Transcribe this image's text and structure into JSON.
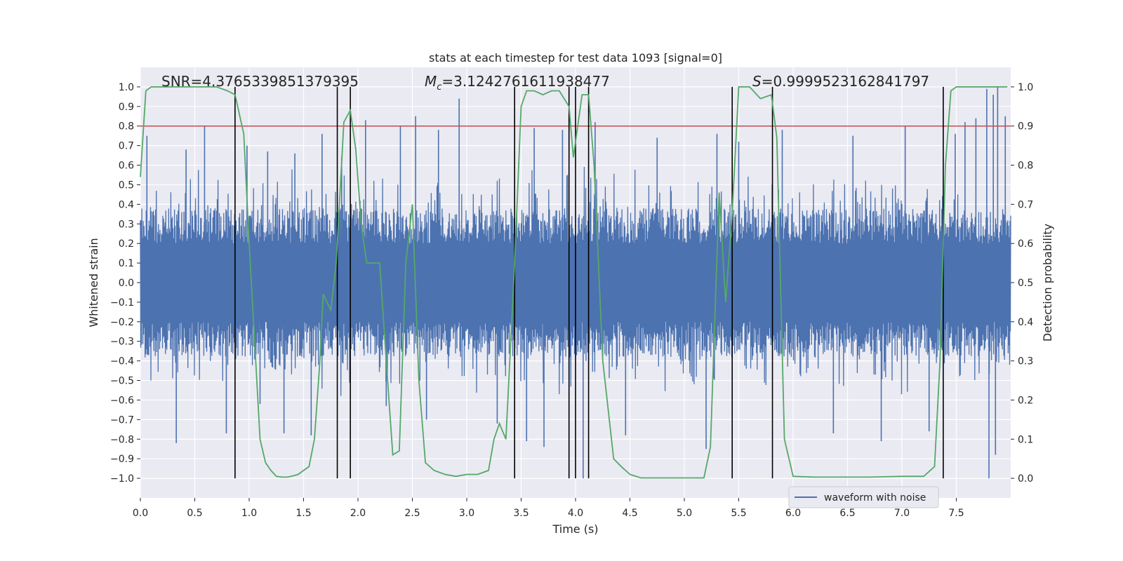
{
  "chart_data": {
    "type": "line",
    "title": "stats at each timestep for test data 1093 [signal=0]",
    "xlabel": "Time (s)",
    "ylabel": "Whitened strain",
    "y2label": "Detection probability",
    "xlim": [
      0.0,
      8.0
    ],
    "ylim": [
      -1.1,
      1.1
    ],
    "y2lim": [
      -0.05,
      1.05
    ],
    "x_ticks": [
      "0.0",
      "0.5",
      "1.0",
      "1.5",
      "2.0",
      "2.5",
      "3.0",
      "3.5",
      "4.0",
      "4.5",
      "5.0",
      "5.5",
      "6.0",
      "6.5",
      "7.0",
      "7.5"
    ],
    "x_tick_values": [
      0.0,
      0.5,
      1.0,
      1.5,
      2.0,
      2.5,
      3.0,
      3.5,
      4.0,
      4.5,
      5.0,
      5.5,
      6.0,
      6.5,
      7.0,
      7.5
    ],
    "y_ticks": [
      "1.0",
      "0.9",
      "0.8",
      "0.7",
      "0.6",
      "0.5",
      "0.4",
      "0.3",
      "0.2",
      "0.1",
      "0.0",
      "−0.1",
      "−0.2",
      "−0.3",
      "−0.4",
      "−0.5",
      "−0.6",
      "−0.7",
      "−0.8",
      "−0.9",
      "−1.0"
    ],
    "y_tick_values": [
      1.0,
      0.9,
      0.8,
      0.7,
      0.6,
      0.5,
      0.4,
      0.3,
      0.2,
      0.1,
      0.0,
      -0.1,
      -0.2,
      -0.3,
      -0.4,
      -0.5,
      -0.6,
      -0.7,
      -0.8,
      -0.9,
      -1.0
    ],
    "y2_ticks": [
      "1.0",
      "0.9",
      "0.8",
      "0.7",
      "0.6",
      "0.5",
      "0.4",
      "0.3",
      "0.2",
      "0.1",
      "0.0"
    ],
    "y2_tick_values": [
      1.0,
      0.9,
      0.8,
      0.7,
      0.6,
      0.5,
      0.4,
      0.3,
      0.2,
      0.1,
      0.0
    ],
    "grid": true,
    "legend_position": "lower-right",
    "stats": {
      "snr": "SNR=4.3765339851379395",
      "mc_prefix": "M",
      "mc_sub": "c",
      "mc_value": "=3.1242761611938477",
      "s_prefix": "S",
      "s_value": "=0.9999523162841797"
    },
    "threshold": {
      "y2": 0.9,
      "color": "#c44e52"
    },
    "vertical_lines": [
      0.87,
      1.81,
      1.93,
      3.44,
      3.94,
      4.0,
      4.12,
      5.44,
      5.81,
      7.38
    ],
    "series": [
      {
        "name": "waveform with noise",
        "axis": "left",
        "color": "#4c72b0",
        "description": "whitened strain, dense noise envelope ~±0.45 with spikes to ±1.0",
        "spikes": [
          [
            0.06,
            0.75
          ],
          [
            0.33,
            -0.82
          ],
          [
            0.42,
            0.68
          ],
          [
            0.59,
            0.8
          ],
          [
            0.79,
            -0.77
          ],
          [
            0.98,
            0.7
          ],
          [
            1.1,
            -0.62
          ],
          [
            1.17,
            0.67
          ],
          [
            1.32,
            -0.77
          ],
          [
            1.42,
            0.66
          ],
          [
            1.57,
            -0.78
          ],
          [
            1.67,
            0.76
          ],
          [
            1.85,
            0.64
          ],
          [
            2.07,
            0.83
          ],
          [
            2.26,
            -0.63
          ],
          [
            2.39,
            0.8
          ],
          [
            2.53,
            0.85
          ],
          [
            2.63,
            -0.7
          ],
          [
            2.74,
            0.78
          ],
          [
            2.93,
            0.94
          ],
          [
            3.28,
            -0.72
          ],
          [
            3.55,
            -0.81
          ],
          [
            3.62,
            0.79
          ],
          [
            3.71,
            -0.84
          ],
          [
            3.88,
            0.78
          ],
          [
            4.07,
            -1.0
          ],
          [
            4.18,
            0.82
          ],
          [
            4.46,
            -0.78
          ],
          [
            4.75,
            0.74
          ],
          [
            5.2,
            -0.85
          ],
          [
            5.3,
            0.76
          ],
          [
            5.5,
            0.72
          ],
          [
            5.9,
            0.78
          ],
          [
            6.37,
            -0.77
          ],
          [
            6.55,
            0.75
          ],
          [
            6.81,
            -0.81
          ],
          [
            7.03,
            0.8
          ],
          [
            7.25,
            -0.76
          ],
          [
            7.49,
            0.76
          ],
          [
            7.58,
            0.82
          ],
          [
            7.68,
            0.84
          ],
          [
            7.78,
            0.99
          ],
          [
            7.8,
            -1.0
          ],
          [
            7.84,
            0.96
          ],
          [
            7.86,
            -0.88
          ],
          [
            7.88,
            1.0
          ],
          [
            7.95,
            0.85
          ]
        ]
      },
      {
        "name": "",
        "axis": "right",
        "color": "#55a868",
        "points": [
          [
            0.0,
            0.77
          ],
          [
            0.05,
            0.99
          ],
          [
            0.1,
            1.0
          ],
          [
            0.2,
            1.0
          ],
          [
            0.3,
            1.0
          ],
          [
            0.4,
            1.0
          ],
          [
            0.5,
            1.0
          ],
          [
            0.6,
            1.0
          ],
          [
            0.7,
            1.0
          ],
          [
            0.8,
            0.99
          ],
          [
            0.87,
            0.98
          ],
          [
            0.95,
            0.88
          ],
          [
            1.0,
            0.6
          ],
          [
            1.05,
            0.35
          ],
          [
            1.1,
            0.1
          ],
          [
            1.15,
            0.04
          ],
          [
            1.2,
            0.02
          ],
          [
            1.25,
            0.005
          ],
          [
            1.3,
            0.003
          ],
          [
            1.35,
            0.003
          ],
          [
            1.4,
            0.006
          ],
          [
            1.45,
            0.01
          ],
          [
            1.5,
            0.02
          ],
          [
            1.55,
            0.03
          ],
          [
            1.6,
            0.1
          ],
          [
            1.65,
            0.3
          ],
          [
            1.68,
            0.47
          ],
          [
            1.75,
            0.43
          ],
          [
            1.8,
            0.55
          ],
          [
            1.87,
            0.91
          ],
          [
            1.93,
            0.94
          ],
          [
            1.98,
            0.84
          ],
          [
            2.03,
            0.65
          ],
          [
            2.08,
            0.55
          ],
          [
            2.13,
            0.55
          ],
          [
            2.2,
            0.55
          ],
          [
            2.26,
            0.3
          ],
          [
            2.32,
            0.06
          ],
          [
            2.38,
            0.07
          ],
          [
            2.44,
            0.55
          ],
          [
            2.5,
            0.7
          ],
          [
            2.56,
            0.25
          ],
          [
            2.62,
            0.04
          ],
          [
            2.7,
            0.02
          ],
          [
            2.8,
            0.01
          ],
          [
            2.9,
            0.005
          ],
          [
            3.0,
            0.01
          ],
          [
            3.1,
            0.01
          ],
          [
            3.2,
            0.02
          ],
          [
            3.25,
            0.1
          ],
          [
            3.3,
            0.14
          ],
          [
            3.36,
            0.1
          ],
          [
            3.44,
            0.55
          ],
          [
            3.5,
            0.95
          ],
          [
            3.55,
            0.99
          ],
          [
            3.62,
            0.99
          ],
          [
            3.7,
            0.98
          ],
          [
            3.78,
            0.99
          ],
          [
            3.85,
            0.99
          ],
          [
            3.94,
            0.95
          ],
          [
            3.98,
            0.82
          ],
          [
            4.02,
            0.9
          ],
          [
            4.06,
            0.98
          ],
          [
            4.12,
            0.98
          ],
          [
            4.17,
            0.8
          ],
          [
            4.25,
            0.3
          ],
          [
            4.35,
            0.05
          ],
          [
            4.42,
            0.03
          ],
          [
            4.5,
            0.01
          ],
          [
            4.6,
            0.001
          ],
          [
            4.8,
            0.001
          ],
          [
            5.0,
            0.001
          ],
          [
            5.18,
            0.001
          ],
          [
            5.24,
            0.08
          ],
          [
            5.32,
            0.73
          ],
          [
            5.38,
            0.45
          ],
          [
            5.44,
            0.68
          ],
          [
            5.5,
            1.0
          ],
          [
            5.6,
            1.0
          ],
          [
            5.7,
            0.97
          ],
          [
            5.8,
            0.98
          ],
          [
            5.85,
            0.87
          ],
          [
            5.92,
            0.1
          ],
          [
            6.0,
            0.005
          ],
          [
            6.2,
            0.003
          ],
          [
            6.5,
            0.003
          ],
          [
            6.7,
            0.003
          ],
          [
            7.0,
            0.005
          ],
          [
            7.2,
            0.005
          ],
          [
            7.3,
            0.03
          ],
          [
            7.35,
            0.3
          ],
          [
            7.4,
            0.8
          ],
          [
            7.45,
            0.99
          ],
          [
            7.5,
            1.0
          ],
          [
            7.7,
            1.0
          ],
          [
            7.97,
            1.0
          ]
        ]
      }
    ]
  }
}
